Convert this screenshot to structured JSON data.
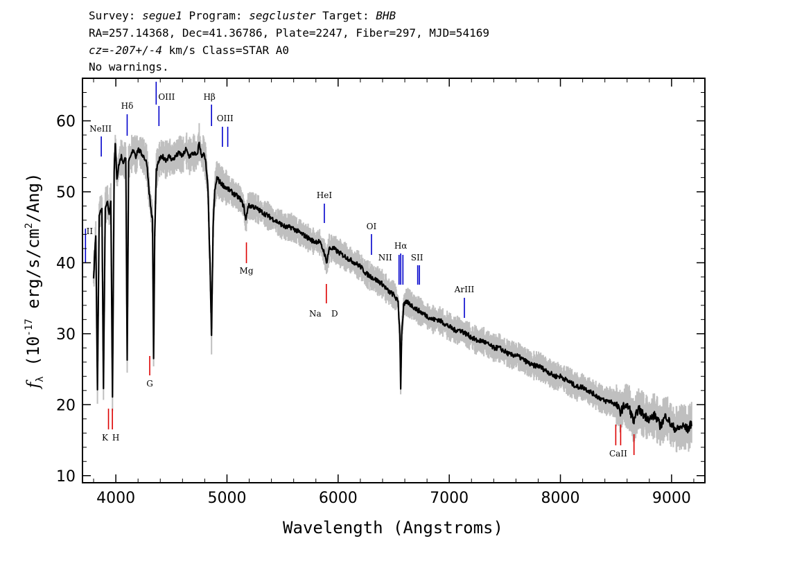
{
  "header": {
    "line1": {
      "survey_label": "Survey: ",
      "survey": "segue1",
      "program_label": " Program: ",
      "program": "segcluster",
      "target_label": " Target: ",
      "target": "BHB"
    },
    "line2": "RA=257.14368, Dec=41.36786, Plate=2247, Fiber=297, MJD=54169",
    "line3": {
      "cz_label": "cz=",
      "cz_value": "-207+/-4",
      "rest": " km/s Class=STAR A0"
    },
    "line4": "No warnings."
  },
  "chart_data": {
    "type": "line",
    "xlabel": "Wavelength (Angstroms)",
    "ylabel": "f_λ (10^-17 erg/s/cm^2/Ang)",
    "ylabel_parts": {
      "f": "f",
      "sub": "λ",
      "pre": " (10",
      "exp": "-17",
      "mid": " erg/s/cm",
      "exp2": "2",
      "post": "/Ang)"
    },
    "xlim": [
      3700,
      9300
    ],
    "ylim": [
      9,
      66
    ],
    "x_ticks": [
      4000,
      5000,
      6000,
      7000,
      8000,
      9000
    ],
    "y_ticks": [
      10,
      20,
      30,
      40,
      50,
      60
    ],
    "series": [
      {
        "color": "#000000",
        "points": [
          [
            3800,
            38
          ],
          [
            3820,
            44
          ],
          [
            3835,
            22
          ],
          [
            3850,
            47
          ],
          [
            3875,
            47.5
          ],
          [
            3889,
            22.5
          ],
          [
            3905,
            48
          ],
          [
            3925,
            48.5
          ],
          [
            3940,
            47
          ],
          [
            3955,
            49
          ],
          [
            3970,
            21
          ],
          [
            3985,
            53
          ],
          [
            3995,
            56.5
          ],
          [
            4010,
            52
          ],
          [
            4030,
            54
          ],
          [
            4050,
            55
          ],
          [
            4070,
            54
          ],
          [
            4090,
            55
          ],
          [
            4102,
            26
          ],
          [
            4115,
            54
          ],
          [
            4135,
            55
          ],
          [
            4160,
            56
          ],
          [
            4180,
            55
          ],
          [
            4200,
            56
          ],
          [
            4225,
            55.5
          ],
          [
            4250,
            55
          ],
          [
            4280,
            54
          ],
          [
            4300,
            50
          ],
          [
            4320,
            47
          ],
          [
            4330,
            46
          ],
          [
            4340,
            26.5
          ],
          [
            4350,
            44
          ],
          [
            4365,
            53
          ],
          [
            4390,
            54.5
          ],
          [
            4420,
            55
          ],
          [
            4450,
            54.5
          ],
          [
            4480,
            55
          ],
          [
            4510,
            54.5
          ],
          [
            4540,
            55
          ],
          [
            4570,
            55.5
          ],
          [
            4600,
            55
          ],
          [
            4630,
            56
          ],
          [
            4660,
            55
          ],
          [
            4700,
            55.5
          ],
          [
            4730,
            55
          ],
          [
            4750,
            57
          ],
          [
            4770,
            55
          ],
          [
            4790,
            55.5
          ],
          [
            4810,
            54
          ],
          [
            4830,
            50
          ],
          [
            4850,
            38
          ],
          [
            4861,
            29.5
          ],
          [
            4875,
            45
          ],
          [
            4890,
            50
          ],
          [
            4910,
            52
          ],
          [
            4930,
            51.5
          ],
          [
            4960,
            51
          ],
          [
            5000,
            50.5
          ],
          [
            5040,
            50
          ],
          [
            5080,
            49.5
          ],
          [
            5120,
            49
          ],
          [
            5150,
            48
          ],
          [
            5170,
            46
          ],
          [
            5190,
            48
          ],
          [
            5230,
            48
          ],
          [
            5280,
            47.5
          ],
          [
            5330,
            47
          ],
          [
            5380,
            46.5
          ],
          [
            5430,
            46
          ],
          [
            5480,
            45.5
          ],
          [
            5530,
            45
          ],
          [
            5580,
            45
          ],
          [
            5630,
            44.5
          ],
          [
            5680,
            44
          ],
          [
            5730,
            43.5
          ],
          [
            5780,
            43
          ],
          [
            5830,
            43
          ],
          [
            5875,
            41.5
          ],
          [
            5895,
            40
          ],
          [
            5920,
            42
          ],
          [
            5960,
            42
          ],
          [
            6000,
            41.5
          ],
          [
            6050,
            41
          ],
          [
            6100,
            40.5
          ],
          [
            6150,
            40
          ],
          [
            6200,
            39.5
          ],
          [
            6250,
            38.5
          ],
          [
            6300,
            38
          ],
          [
            6350,
            37.5
          ],
          [
            6400,
            37
          ],
          [
            6450,
            36
          ],
          [
            6500,
            35.5
          ],
          [
            6540,
            34.5
          ],
          [
            6555,
            30
          ],
          [
            6563,
            22.5
          ],
          [
            6572,
            30
          ],
          [
            6590,
            34
          ],
          [
            6620,
            34.5
          ],
          [
            6660,
            34
          ],
          [
            6700,
            33.5
          ],
          [
            6750,
            33
          ],
          [
            6800,
            32.5
          ],
          [
            6850,
            32
          ],
          [
            6900,
            32
          ],
          [
            6950,
            31.5
          ],
          [
            7000,
            31
          ],
          [
            7050,
            30.5
          ],
          [
            7100,
            30.5
          ],
          [
            7150,
            30
          ],
          [
            7200,
            29.5
          ],
          [
            7250,
            29
          ],
          [
            7300,
            29
          ],
          [
            7350,
            28.5
          ],
          [
            7400,
            28
          ],
          [
            7450,
            28
          ],
          [
            7500,
            27.5
          ],
          [
            7550,
            27
          ],
          [
            7600,
            27
          ],
          [
            7650,
            26.5
          ],
          [
            7700,
            26
          ],
          [
            7750,
            25.5
          ],
          [
            7800,
            25.5
          ],
          [
            7850,
            25
          ],
          [
            7900,
            24.5
          ],
          [
            7950,
            24
          ],
          [
            8000,
            24
          ],
          [
            8050,
            23.5
          ],
          [
            8100,
            23
          ],
          [
            8150,
            22.5
          ],
          [
            8200,
            22.5
          ],
          [
            8250,
            22
          ],
          [
            8300,
            21.5
          ],
          [
            8350,
            21
          ],
          [
            8400,
            20.5
          ],
          [
            8450,
            20.5
          ],
          [
            8500,
            20
          ],
          [
            8540,
            19
          ],
          [
            8580,
            20
          ],
          [
            8620,
            19.5
          ],
          [
            8662,
            17.5
          ],
          [
            8700,
            19.5
          ],
          [
            8750,
            18.5
          ],
          [
            8800,
            18
          ],
          [
            8850,
            18.5
          ],
          [
            8900,
            17
          ],
          [
            8950,
            18.5
          ],
          [
            9000,
            17
          ],
          [
            9050,
            16.5
          ],
          [
            9100,
            17
          ],
          [
            9150,
            16.5
          ],
          [
            9180,
            17.5
          ]
        ]
      }
    ],
    "noise_band": {
      "color": "#bfbfbf"
    },
    "emission_lines": [
      {
        "label": "NeIII",
        "wavelength": 3869
      },
      {
        "label": "Hδ",
        "wavelength": 4102
      },
      {
        "label": "OIII",
        "wavelength": 4363
      },
      {
        "label": "Hβ",
        "wavelength": 4861
      },
      {
        "label": "OIII",
        "wavelength": 4959
      },
      {
        "label": "OIII",
        "wavelength": 5007
      },
      {
        "label": "HeI",
        "wavelength": 5876
      },
      {
        "label": "OI",
        "wavelength": 6300
      },
      {
        "label": "NII",
        "wavelength": 6548
      },
      {
        "label": "Hα",
        "wavelength": 6563
      },
      {
        "label": "NII",
        "wavelength": 6583
      },
      {
        "label": "SII",
        "wavelength": 6716
      },
      {
        "label": "SII",
        "wavelength": 6731
      },
      {
        "label": "ArIII",
        "wavelength": 7136
      },
      {
        "label": "II",
        "wavelength": 3727
      }
    ],
    "absorption_lines": [
      {
        "label": "K",
        "wavelength": 3934
      },
      {
        "label": "H",
        "wavelength": 3969
      },
      {
        "label": "G",
        "wavelength": 4305
      },
      {
        "label": "Mg",
        "wavelength": 5175
      },
      {
        "label": "Na",
        "wavelength": 5894
      },
      {
        "label": "D",
        "wavelength": 5894
      },
      {
        "label": "CaII",
        "wavelength": 8498
      },
      {
        "label": "CaII",
        "wavelength": 8542
      },
      {
        "label": "CaII",
        "wavelength": 8662
      }
    ],
    "colors": {
      "emission": "#0000cc",
      "absorption": "#dd0000",
      "flux": "#000000"
    }
  }
}
